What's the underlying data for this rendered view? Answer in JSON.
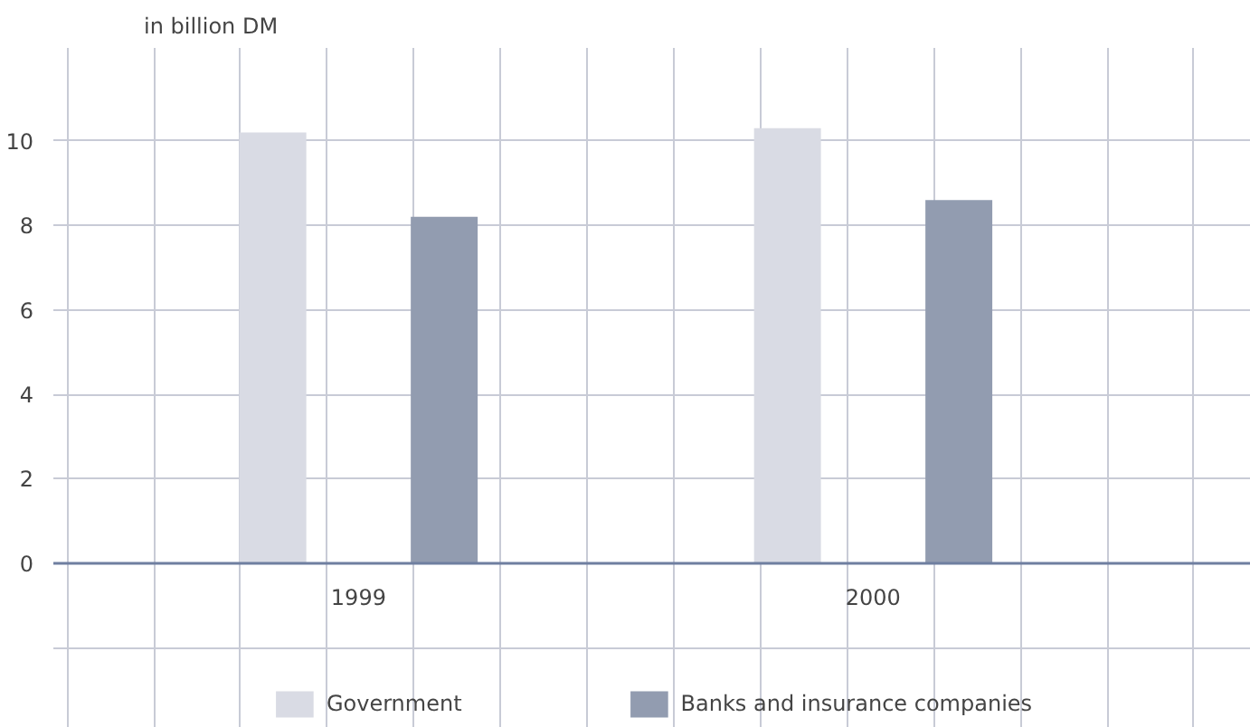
{
  "chart_data": {
    "type": "bar",
    "ylabel": "in billion DM",
    "categories": [
      "1999",
      "2000"
    ],
    "series": [
      {
        "name": "Government",
        "color": "#d9dbe4",
        "values": [
          10.2,
          10.3
        ]
      },
      {
        "name": "Banks and insurance companies",
        "color": "#929cb0",
        "values": [
          8.2,
          8.6
        ]
      }
    ],
    "ylim": [
      -3.9,
      12.2
    ],
    "yticks": [
      {
        "value": -2,
        "label": null
      },
      0,
      2,
      4,
      6,
      8,
      10
    ],
    "grid": true,
    "legend": "bottom"
  }
}
